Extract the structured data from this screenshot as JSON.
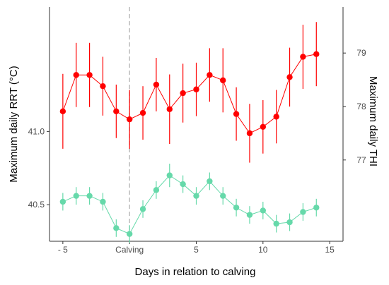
{
  "chart_data": {
    "type": "scatter",
    "title": "",
    "xlabel": "Days in relation to calving",
    "ylabel_left": "Maximum daily RRT (°C)",
    "ylabel_right": "Maximum daily THI",
    "x_ticks": [
      {
        "value": -5,
        "label": "- 5"
      },
      {
        "value": 0,
        "label": "Calving"
      },
      {
        "value": 5,
        "label": "5"
      },
      {
        "value": 10,
        "label": "10"
      },
      {
        "value": 15,
        "label": "15"
      }
    ],
    "xlim": [
      -6,
      16
    ],
    "y_left_ticks": [
      {
        "value": 40.5,
        "label": "40.5"
      },
      {
        "value": 41.0,
        "label": "41.0"
      }
    ],
    "y_left_lim": [
      40.25,
      41.85
    ],
    "y_right_ticks": [
      {
        "value": 77,
        "label": "77"
      },
      {
        "value": 78,
        "label": "78"
      },
      {
        "value": 79,
        "label": "79"
      }
    ],
    "y_right_lim": [
      75.48,
      79.86
    ],
    "reference_line_x": 0,
    "grid": false,
    "series": [
      {
        "axis": "right",
        "color": "#ff0000",
        "x": [
          -5,
          -4,
          -3,
          -2,
          -1,
          0,
          1,
          2,
          3,
          4,
          5,
          6,
          7,
          8,
          9,
          10,
          11,
          12,
          13,
          14
        ],
        "y": [
          77.91,
          78.59,
          78.59,
          78.38,
          77.91,
          77.76,
          77.88,
          78.41,
          77.95,
          78.25,
          78.32,
          78.59,
          78.49,
          77.86,
          77.5,
          77.62,
          77.81,
          78.55,
          78.93,
          78.98
        ],
        "err": [
          0.7,
          0.6,
          0.6,
          0.55,
          0.5,
          0.55,
          0.5,
          0.5,
          0.65,
          0.55,
          0.5,
          0.5,
          0.6,
          0.5,
          0.55,
          0.5,
          0.5,
          0.55,
          0.6,
          0.6
        ]
      },
      {
        "axis": "left",
        "color": "#66d9aa",
        "x": [
          -5,
          -4,
          -3,
          -2,
          -1,
          0,
          1,
          2,
          3,
          4,
          5,
          6,
          7,
          8,
          9,
          10,
          11,
          12,
          13,
          14
        ],
        "y": [
          40.52,
          40.56,
          40.56,
          40.52,
          40.34,
          40.3,
          40.47,
          40.6,
          40.7,
          40.64,
          40.56,
          40.66,
          40.56,
          40.48,
          40.43,
          40.46,
          40.37,
          40.38,
          40.45,
          40.48
        ],
        "err": [
          0.06,
          0.06,
          0.06,
          0.06,
          0.06,
          0.06,
          0.06,
          0.06,
          0.08,
          0.06,
          0.06,
          0.06,
          0.06,
          0.06,
          0.06,
          0.06,
          0.06,
          0.06,
          0.06,
          0.06
        ]
      }
    ]
  }
}
